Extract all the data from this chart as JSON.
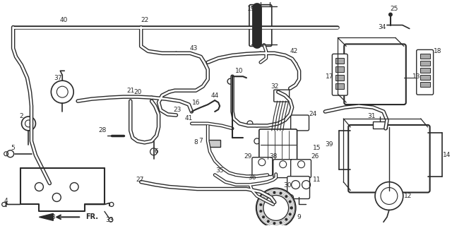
{
  "bg": "#ffffff",
  "lc": "#2a2a2a",
  "fw": 6.4,
  "fh": 3.2,
  "dpi": 100
}
